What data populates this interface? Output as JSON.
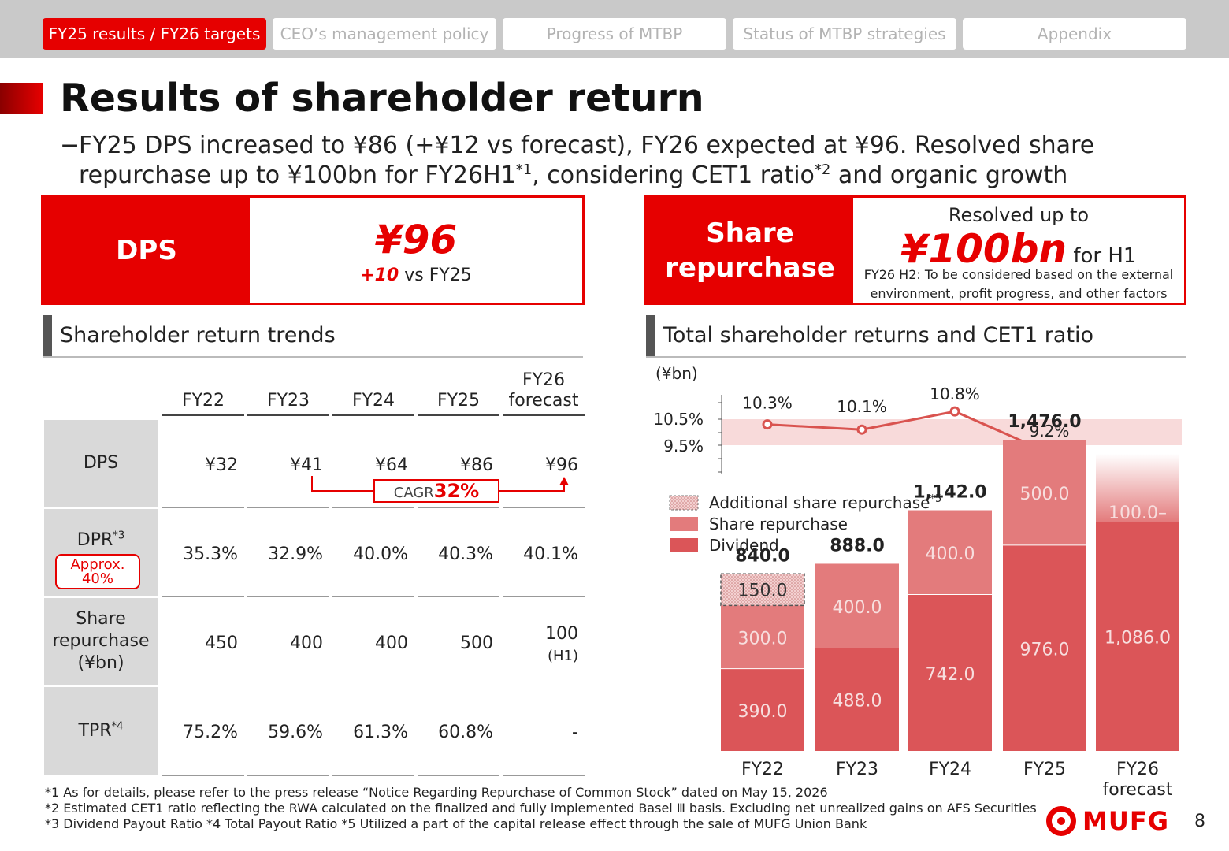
{
  "nav": {
    "tabs": [
      {
        "label": "FY25 results / FY26 targets",
        "active": true
      },
      {
        "label": "CEO’s management policy",
        "active": false
      },
      {
        "label": "Progress of MTBP",
        "active": false
      },
      {
        "label": "Status of MTBP strategies",
        "active": false
      },
      {
        "label": "Appendix",
        "active": false
      }
    ]
  },
  "title": "Results of shareholder return",
  "subtitle": {
    "dash": "−",
    "line1": "FY25 DPS increased to ¥86 (+¥12 vs forecast), FY26 expected at ¥96. Resolved share",
    "line2a": "repurchase up to ¥100bn for FY26H1",
    "sup1": "*1",
    "line2b": ", considering CET1 ratio",
    "sup2": "*2",
    "line2c": " and organic growth"
  },
  "dps_box": {
    "label": "DPS",
    "value": "¥96",
    "delta": "+10",
    "delta_suffix": " vs FY25"
  },
  "sr_box": {
    "label_line1": "Share",
    "label_line2": "repurchase",
    "head": "Resolved up to",
    "value": "¥100bn",
    "value_suffix": " for H1",
    "note_line1": "FY26 H2: To be considered based on the external",
    "note_line2": "environment, profit progress, and other factors"
  },
  "left_section": {
    "title": "Shareholder return trends"
  },
  "right_section": {
    "title": "Total shareholder returns and CET1 ratio"
  },
  "table": {
    "columns": [
      {
        "line1": "FY22",
        "line2": ""
      },
      {
        "line1": "FY23",
        "line2": ""
      },
      {
        "line1": "FY24",
        "line2": ""
      },
      {
        "line1": "FY25",
        "line2": ""
      },
      {
        "line1": "FY26",
        "line2": "forecast"
      }
    ],
    "rows": [
      {
        "label": "DPS",
        "label_sup": "",
        "label_line2": "",
        "label_line3": "",
        "values": [
          "¥32",
          "¥41",
          "¥64",
          "¥86",
          "¥96"
        ],
        "sub": [
          "",
          "",
          "",
          "",
          ""
        ]
      },
      {
        "label": "DPR",
        "label_sup": "*3",
        "label_line2": "",
        "label_line3": "",
        "values": [
          "35.3%",
          "32.9%",
          "40.0%",
          "40.3%",
          "40.1%"
        ],
        "sub": [
          "",
          "",
          "",
          "",
          ""
        ]
      },
      {
        "label": "Share",
        "label_sup": "",
        "label_line2": "repurchase",
        "label_line3": "(¥bn)",
        "values": [
          "450",
          "400",
          "400",
          "500",
          "100"
        ],
        "sub": [
          "",
          "",
          "",
          "",
          "(H1)"
        ]
      },
      {
        "label": "TPR",
        "label_sup": "*4",
        "label_line2": "",
        "label_line3": "",
        "values": [
          "75.2%",
          "59.6%",
          "61.3%",
          "60.8%",
          "-"
        ],
        "sub": [
          "",
          "",
          "",
          "",
          ""
        ]
      }
    ],
    "approx_line1": "Approx.",
    "approx_line2": "40%",
    "cagr_prefix": "CAGR",
    "cagr_value": "32%"
  },
  "chart_data": {
    "type": "bar",
    "stacked": true,
    "unit": "(¥bn)",
    "categories": [
      "FY22",
      "FY23",
      "FY24",
      "FY25",
      "FY26 forecast"
    ],
    "series": [
      {
        "name": "Dividend",
        "values": [
          390.0,
          488.0,
          742.0,
          976.0,
          1086.0
        ],
        "color": "#db5558"
      },
      {
        "name": "Share repurchase",
        "values": [
          300.0,
          400.0,
          400.0,
          500.0,
          100.0
        ],
        "color": "#e37b7c"
      },
      {
        "name": "Additional share repurchase",
        "name_sup": "*5",
        "values": [
          150.0,
          0,
          0,
          0,
          0
        ],
        "color": "#f2c6c6"
      }
    ],
    "value_labels": {
      "Dividend": [
        "390.0",
        "488.0",
        "742.0",
        "976.0",
        "1,086.0"
      ],
      "Share repurchase": [
        "300.0",
        "400.0",
        "400.0",
        "500.0",
        "100.0"
      ],
      "Additional share repurchase": [
        "150.0",
        "",
        "",
        "",
        ""
      ]
    },
    "totals": [
      "840.0",
      "888.0",
      "1,142.0",
      "1,476.0",
      ""
    ],
    "legend_position": "top-left",
    "cet1": {
      "type": "line",
      "values": [
        10.3,
        10.1,
        10.8,
        9.2
      ],
      "labels": [
        "10.3%",
        "10.1%",
        "10.8%",
        "9.2%"
      ],
      "target_band": [
        9.5,
        10.5
      ],
      "target_band_labels": [
        "10.5%",
        "9.5%"
      ],
      "color": "#d9534f",
      "band_color": "#f8dada"
    }
  },
  "footnotes": {
    "f1": "*1 As for details, please refer to the press release “Notice Regarding Repurchase of Common Stock” dated on May 15, 2026",
    "f2": "*2 Estimated CET1 ratio reflecting the RWA calculated on the finalized and fully implemented Basel Ⅲ basis. Excluding net unrealized gains on AFS Securities",
    "f3": "*3 Dividend Payout Ratio  *4 Total Payout Ratio  *5 Utilized a part of the capital release effect through the sale of MUFG Union Bank"
  },
  "logo_text": "MUFG",
  "page_number": "8"
}
